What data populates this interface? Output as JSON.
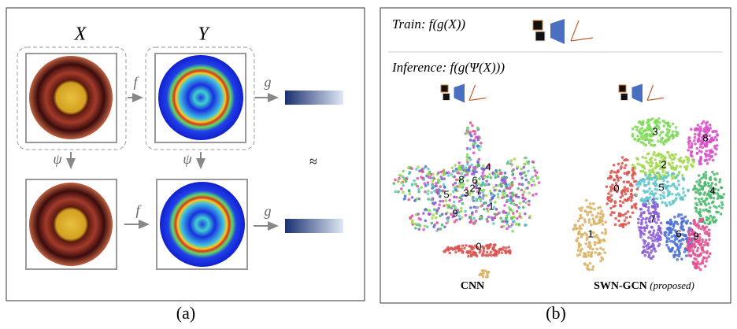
{
  "panel_a": {
    "column_labels": [
      "X",
      "Y"
    ],
    "arrow_labels": [
      "f",
      "g",
      "ψ",
      "ψ",
      "f",
      "g"
    ],
    "approx": "≈",
    "caption": "(a)"
  },
  "panel_b": {
    "train_label": "Train",
    "train_formula": ": f(g(X))",
    "inference_label": "Inference",
    "inference_formula": ": f(g(Ψ(X)))",
    "plots": [
      {
        "title": "CNN",
        "cluster_labels": [
          "8",
          "5",
          "3",
          "4",
          "6",
          "2",
          "7",
          "9",
          "1",
          "0"
        ]
      },
      {
        "title": "SWN-GCN",
        "subtitle": "(proposed)",
        "cluster_labels": [
          "3",
          "8",
          "2",
          "0",
          "5",
          "4",
          "7",
          "6",
          "9",
          "1"
        ]
      }
    ],
    "caption": "(b)"
  }
}
